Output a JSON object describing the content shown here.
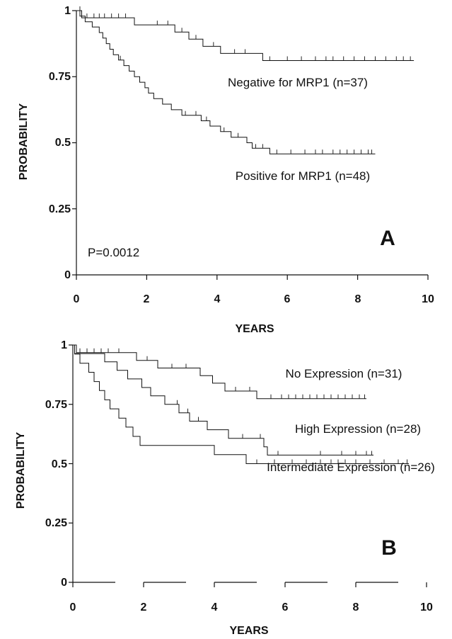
{
  "chart_data": [
    {
      "panel": "A",
      "type": "line",
      "xlabel": "YEARS",
      "ylabel": "PROBABILITY",
      "xlim": [
        0,
        10
      ],
      "ylim": [
        0,
        1
      ],
      "xticks": [
        "0",
        "2",
        "4",
        "6",
        "8",
        "10"
      ],
      "yticks": [
        "0",
        "0.25",
        "0.5",
        "0.75",
        "1"
      ],
      "pvalue": "P=0.0012",
      "series": [
        {
          "name": "Negative for MRP1 (n=37)",
          "steps": [
            [
              0,
              1
            ],
            [
              0.15,
              0.973
            ],
            [
              1.65,
              0.973
            ],
            [
              1.65,
              0.946
            ],
            [
              2.8,
              0.946
            ],
            [
              2.8,
              0.919
            ],
            [
              3.2,
              0.919
            ],
            [
              3.2,
              0.892
            ],
            [
              3.6,
              0.892
            ],
            [
              3.6,
              0.865
            ],
            [
              4.1,
              0.865
            ],
            [
              4.1,
              0.838
            ],
            [
              5.3,
              0.838
            ],
            [
              5.3,
              0.811
            ],
            [
              9.6,
              0.811
            ]
          ],
          "censored": [
            0.1,
            0.3,
            0.5,
            0.65,
            0.8,
            1.0,
            1.2,
            1.4,
            2.3,
            2.6,
            3.0,
            3.4,
            3.9,
            4.5,
            4.8,
            5.5,
            6.0,
            6.4,
            6.8,
            7.1,
            7.3,
            7.6,
            7.9,
            8.2,
            8.5,
            8.8,
            9.1,
            9.3,
            9.5
          ],
          "censored_y": [
            1,
            0.973,
            0.973,
            0.973,
            0.973,
            0.973,
            0.973,
            0.973,
            0.946,
            0.946,
            0.919,
            0.892,
            0.865,
            0.838,
            0.838,
            0.811,
            0.811,
            0.811,
            0.811,
            0.811,
            0.811,
            0.811,
            0.811,
            0.811,
            0.811,
            0.811,
            0.811,
            0.811,
            0.811
          ]
        },
        {
          "name": "Positive for MRP1 (n=48)",
          "steps": [
            [
              0,
              1
            ],
            [
              0.1,
              0.979
            ],
            [
              0.25,
              0.958
            ],
            [
              0.45,
              0.938
            ],
            [
              0.65,
              0.917
            ],
            [
              0.75,
              0.896
            ],
            [
              0.85,
              0.875
            ],
            [
              0.95,
              0.854
            ],
            [
              1.05,
              0.833
            ],
            [
              1.2,
              0.813
            ],
            [
              1.35,
              0.792
            ],
            [
              1.5,
              0.771
            ],
            [
              1.65,
              0.75
            ],
            [
              1.8,
              0.729
            ],
            [
              1.95,
              0.708
            ],
            [
              2.05,
              0.688
            ],
            [
              2.2,
              0.667
            ],
            [
              2.45,
              0.646
            ],
            [
              2.7,
              0.625
            ],
            [
              3.0,
              0.604
            ],
            [
              3.3,
              0.604
            ],
            [
              3.55,
              0.583
            ],
            [
              3.8,
              0.563
            ],
            [
              4.1,
              0.542
            ],
            [
              4.4,
              0.521
            ],
            [
              4.85,
              0.5
            ],
            [
              5.0,
              0.479
            ],
            [
              5.5,
              0.458
            ],
            [
              8.5,
              0.458
            ]
          ],
          "censored": [
            1.25,
            3.1,
            3.4,
            3.7,
            4.2,
            4.6,
            5.1,
            5.3,
            5.7,
            6.1,
            6.5,
            6.8,
            7.0,
            7.3,
            7.5,
            7.7,
            7.9,
            8.1,
            8.3,
            8.4
          ],
          "censored_y": [
            0.813,
            0.604,
            0.604,
            0.583,
            0.542,
            0.521,
            0.479,
            0.479,
            0.458,
            0.458,
            0.458,
            0.458,
            0.458,
            0.458,
            0.458,
            0.458,
            0.458,
            0.458,
            0.458,
            0.458
          ]
        }
      ]
    },
    {
      "panel": "B",
      "type": "line",
      "xlabel": "YEARS",
      "ylabel": "PROBABILITY",
      "xlim": [
        0,
        10
      ],
      "ylim": [
        0,
        1
      ],
      "xticks": [
        "0",
        "2",
        "4",
        "6",
        "8",
        "10"
      ],
      "yticks": [
        "0",
        "0.25",
        "0.5",
        "0.75",
        "1"
      ],
      "series": [
        {
          "name": "No Expression (n=31)",
          "steps": [
            [
              0,
              1
            ],
            [
              0.1,
              0.968
            ],
            [
              1.8,
              0.968
            ],
            [
              1.8,
              0.935
            ],
            [
              2.4,
              0.935
            ],
            [
              2.4,
              0.903
            ],
            [
              3.6,
              0.903
            ],
            [
              3.6,
              0.871
            ],
            [
              3.95,
              0.871
            ],
            [
              3.95,
              0.839
            ],
            [
              4.3,
              0.839
            ],
            [
              4.3,
              0.806
            ],
            [
              5.2,
              0.806
            ],
            [
              5.2,
              0.774
            ],
            [
              8.3,
              0.774
            ]
          ],
          "censored": [
            0.2,
            0.4,
            0.6,
            0.8,
            1.0,
            1.3,
            2.1,
            2.8,
            3.2,
            4.6,
            5.0,
            5.6,
            5.9,
            6.1,
            6.3,
            6.5,
            6.7,
            6.9,
            7.1,
            7.3,
            7.5,
            7.7,
            7.9,
            8.1,
            8.25
          ],
          "censored_y": [
            0.968,
            0.968,
            0.968,
            0.968,
            0.968,
            0.968,
            0.935,
            0.903,
            0.903,
            0.806,
            0.806,
            0.774,
            0.774,
            0.774,
            0.774,
            0.774,
            0.774,
            0.774,
            0.774,
            0.774,
            0.774,
            0.774,
            0.774,
            0.774,
            0.774
          ]
        },
        {
          "name": "High Expression (n=28)",
          "steps": [
            [
              0,
              1
            ],
            [
              0.05,
              0.964
            ],
            [
              0.8,
              0.964
            ],
            [
              0.9,
              0.929
            ],
            [
              1.25,
              0.893
            ],
            [
              1.55,
              0.857
            ],
            [
              1.95,
              0.821
            ],
            [
              2.2,
              0.786
            ],
            [
              2.6,
              0.75
            ],
            [
              3.0,
              0.714
            ],
            [
              3.3,
              0.679
            ],
            [
              3.8,
              0.643
            ],
            [
              4.4,
              0.607
            ],
            [
              5.4,
              0.571
            ],
            [
              5.5,
              0.536
            ],
            [
              8.5,
              0.536
            ]
          ],
          "censored": [
            2.95,
            3.25,
            3.55,
            4.8,
            5.3,
            5.8,
            7.0,
            7.6,
            8.0,
            8.3,
            8.45
          ],
          "censored_y": [
            0.75,
            0.714,
            0.679,
            0.607,
            0.607,
            0.536,
            0.536,
            0.536,
            0.536,
            0.536,
            0.536
          ]
        },
        {
          "name": "Intermediate Expression (n=26)",
          "steps": [
            [
              0,
              1
            ],
            [
              0.05,
              0.962
            ],
            [
              0.2,
              0.923
            ],
            [
              0.45,
              0.885
            ],
            [
              0.6,
              0.846
            ],
            [
              0.75,
              0.808
            ],
            [
              0.9,
              0.769
            ],
            [
              1.05,
              0.731
            ],
            [
              1.3,
              0.692
            ],
            [
              1.5,
              0.654
            ],
            [
              1.7,
              0.615
            ],
            [
              1.9,
              0.577
            ],
            [
              3.4,
              0.577
            ],
            [
              4.0,
              0.538
            ],
            [
              4.9,
              0.5
            ],
            [
              9.5,
              0.5
            ]
          ],
          "censored": [
            5.2,
            5.7,
            6.2,
            6.6,
            7.0,
            7.3,
            7.5,
            7.7,
            8.0,
            8.4,
            8.8,
            9.2,
            9.45
          ],
          "censored_y": [
            0.5,
            0.5,
            0.5,
            0.5,
            0.5,
            0.5,
            0.5,
            0.5,
            0.5,
            0.5,
            0.5,
            0.5,
            0.5
          ]
        }
      ]
    }
  ]
}
